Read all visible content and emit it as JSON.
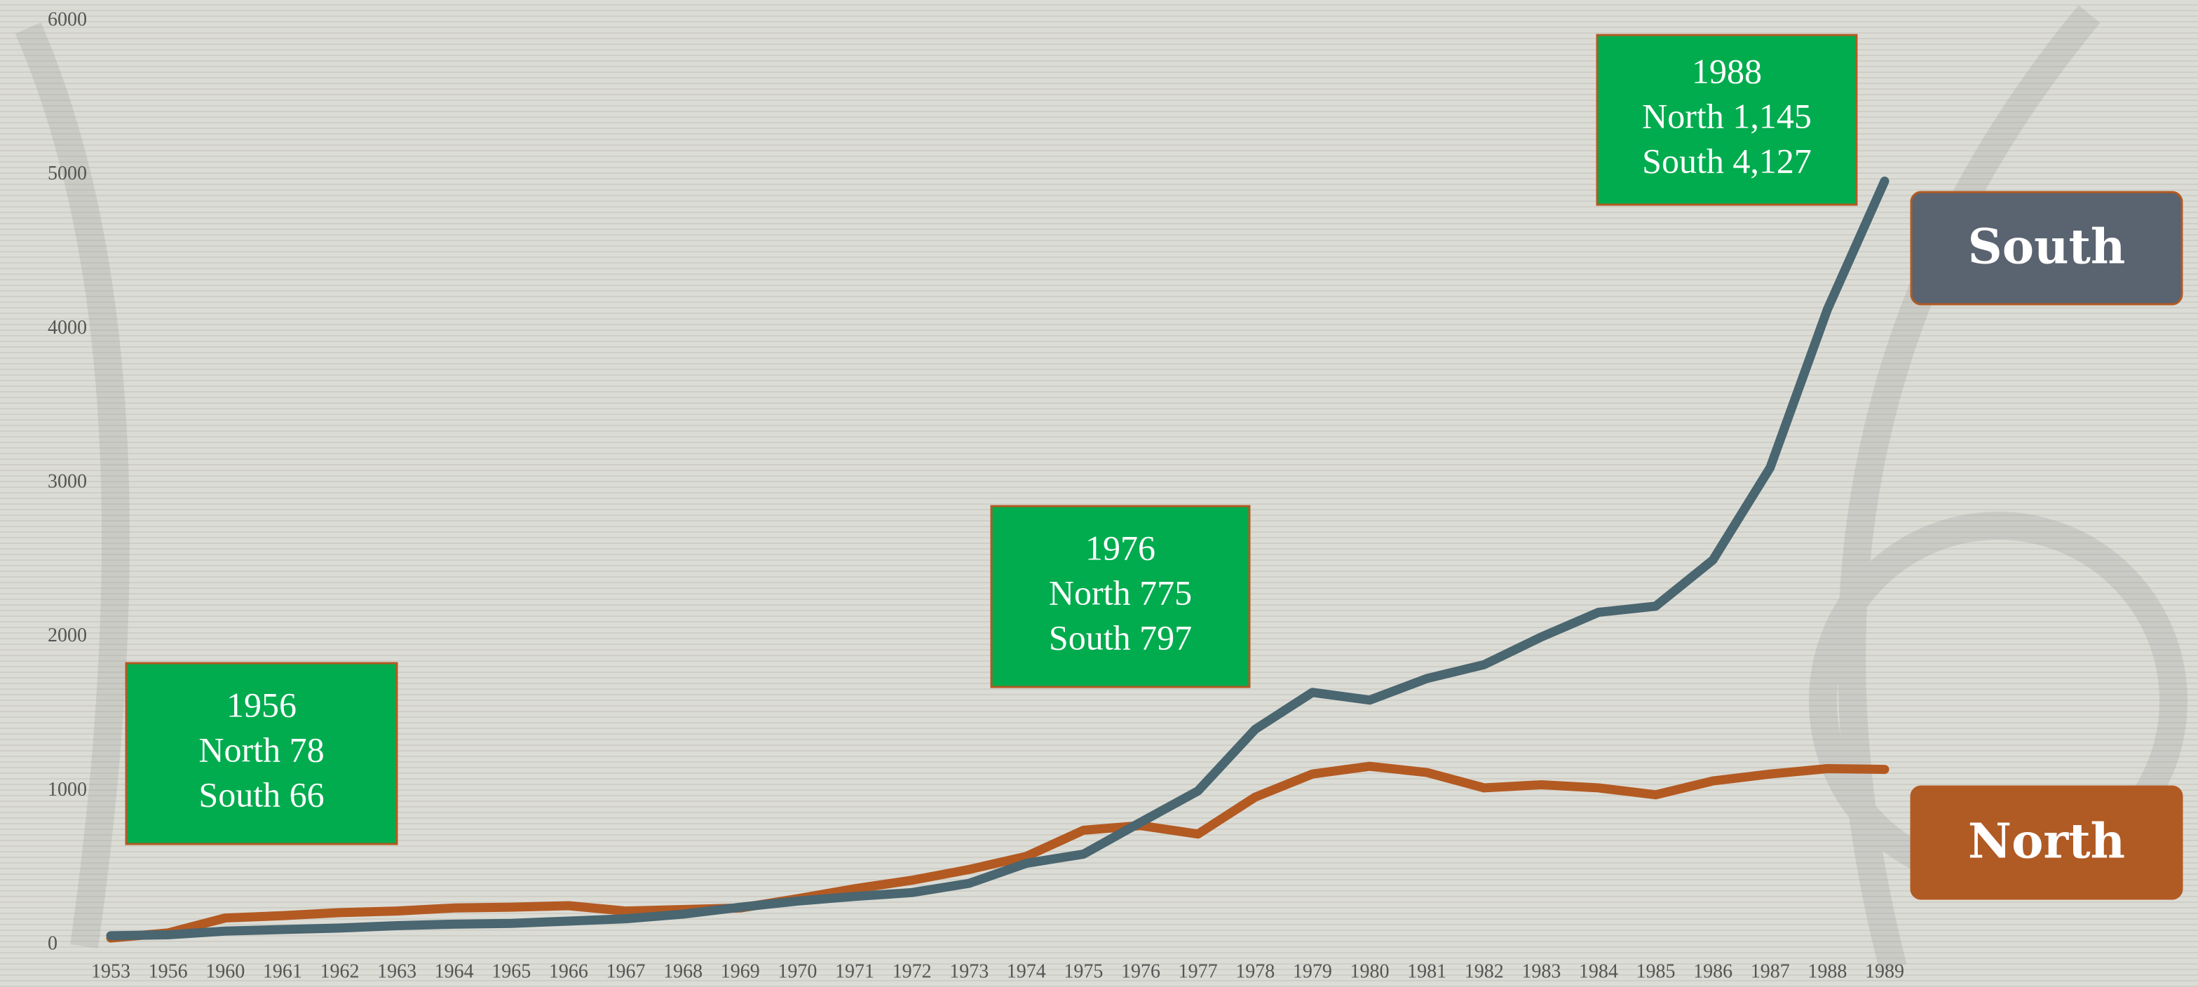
{
  "chart_data": {
    "type": "line",
    "categories": [
      "1953",
      "1956",
      "1960",
      "1961",
      "1962",
      "1963",
      "1964",
      "1965",
      "1966",
      "1967",
      "1968",
      "1969",
      "1970",
      "1971",
      "1972",
      "1973",
      "1974",
      "1975",
      "1976",
      "1977",
      "1978",
      "1979",
      "1980",
      "1981",
      "1982",
      "1983",
      "1984",
      "1985",
      "1986",
      "1987",
      "1988",
      "1989"
    ],
    "series": [
      {
        "name": "South",
        "color": "#4a6670",
        "box_color": "#5a6370",
        "values": [
          60,
          66,
          90,
          100,
          110,
          125,
          135,
          140,
          155,
          170,
          200,
          245,
          285,
          315,
          340,
          400,
          530,
          590,
          797,
          1000,
          1400,
          1640,
          1590,
          1730,
          1820,
          2000,
          2160,
          2200,
          2500,
          3100,
          4127,
          4960
        ]
      },
      {
        "name": "North",
        "color": "#b35a22",
        "box_color": "#b05a24",
        "values": [
          45,
          78,
          175,
          190,
          210,
          220,
          240,
          245,
          255,
          220,
          230,
          240,
          300,
          365,
          420,
          490,
          575,
          745,
          775,
          720,
          960,
          1110,
          1160,
          1120,
          1020,
          1040,
          1020,
          975,
          1065,
          1110,
          1145,
          1140
        ]
      }
    ],
    "ylim": [
      0,
      6000
    ],
    "yticks": [
      0,
      1000,
      2000,
      3000,
      4000,
      5000,
      6000
    ],
    "grid": false,
    "annotations": [
      {
        "lines": [
          "1956",
          "North 78",
          "South 66"
        ]
      },
      {
        "lines": [
          "1976",
          "North 775",
          "South 797"
        ]
      },
      {
        "lines": [
          "1988",
          "North 1,145",
          "South 4,127"
        ]
      }
    ]
  }
}
